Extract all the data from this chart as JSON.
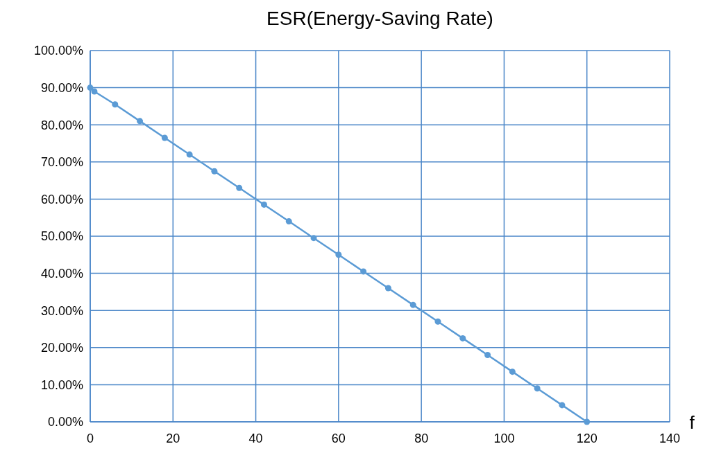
{
  "chart_data": {
    "type": "line",
    "title": "ESR(Energy-Saving Rate)",
    "xlabel": "f",
    "x": [
      0,
      1,
      6,
      12,
      18,
      24,
      30,
      36,
      42,
      48,
      54,
      60,
      66,
      72,
      78,
      84,
      90,
      96,
      102,
      108,
      114,
      120
    ],
    "series": [
      {
        "color": "#5b9bd5",
        "values": [
          90,
          89,
          85.5,
          81,
          76.5,
          72,
          67.5,
          63,
          58.5,
          54,
          49.5,
          45,
          40.5,
          36,
          31.5,
          27,
          22.5,
          18,
          13.5,
          9,
          4.5,
          0
        ]
      }
    ],
    "xlim": [
      0,
      140
    ],
    "xticks": [
      0,
      20,
      40,
      60,
      80,
      100,
      120,
      140
    ],
    "ylim": [
      0,
      100
    ],
    "yticks": [
      {
        "value": 0,
        "label": "0.00%"
      },
      {
        "value": 10,
        "label": "10.00%"
      },
      {
        "value": 20,
        "label": "20.00%"
      },
      {
        "value": 30,
        "label": "30.00%"
      },
      {
        "value": 40,
        "label": "40.00%"
      },
      {
        "value": 50,
        "label": "50.00%"
      },
      {
        "value": 60,
        "label": "60.00%"
      },
      {
        "value": 70,
        "label": "70.00%"
      },
      {
        "value": 80,
        "label": "80.00%"
      },
      {
        "value": 90,
        "label": "90.00%"
      },
      {
        "value": 100,
        "label": "100.00%"
      }
    ],
    "grid": true,
    "marker": "circle",
    "line_style": "solid"
  }
}
